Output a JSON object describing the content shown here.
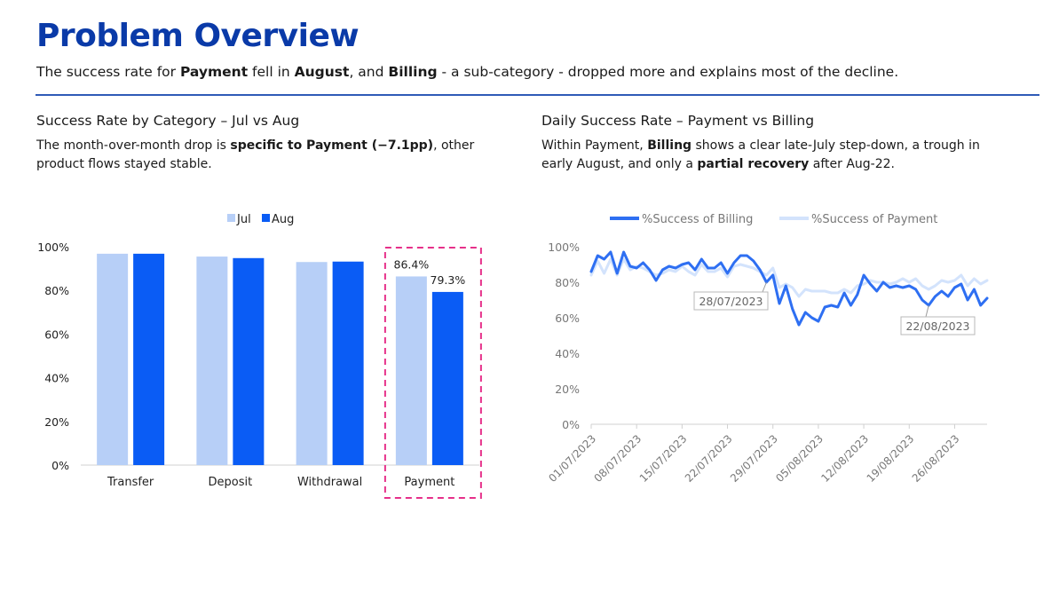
{
  "header": {
    "title": "Problem Overview",
    "subtitle": {
      "t1": "The success rate for ",
      "b1": "Payment",
      "t2": " fell in ",
      "b2": "August",
      "t3": ", and ",
      "b3": "Billing",
      "t4": " - a sub-category - dropped more and explains most of the decline."
    }
  },
  "left_panel": {
    "title": "Success Rate by Category – Jul vs Aug",
    "desc": {
      "t1": "The month-over-month drop is ",
      "b1": "specific to Payment (−7.1pp)",
      "t2": ", other product flows stayed stable."
    }
  },
  "right_panel": {
    "title": "Daily Success Rate – Payment vs Billing",
    "desc": {
      "t1": "Within Payment, ",
      "b1": "Billing",
      "t2": " shows a clear late-July step-down, a trough in early August, and only a ",
      "b2": "partial recovery",
      "t3": " after Aug-22."
    }
  },
  "chart_data": [
    {
      "type": "bar",
      "categories": [
        "Transfer",
        "Deposit",
        "Withdrawal",
        "Payment"
      ],
      "series": [
        {
          "name": "Jul",
          "color": "#b7cff7",
          "values": [
            96.8,
            95.5,
            93.0,
            86.4
          ]
        },
        {
          "name": "Aug",
          "color": "#0a5cf5",
          "values": [
            96.8,
            94.8,
            93.2,
            79.3
          ]
        }
      ],
      "data_labels": {
        "Payment": [
          "86.4%",
          "79.3%"
        ]
      },
      "highlight_category": "Payment",
      "highlight_color": "#e6308a",
      "ylim": [
        0,
        100
      ],
      "yticks": [
        "0%",
        "20%",
        "40%",
        "60%",
        "80%",
        "100%"
      ],
      "legend": "top-center",
      "grid": false
    },
    {
      "type": "line",
      "x": [
        "01/07/2023",
        "02/07/2023",
        "03/07/2023",
        "04/07/2023",
        "05/07/2023",
        "06/07/2023",
        "07/07/2023",
        "08/07/2023",
        "09/07/2023",
        "10/07/2023",
        "11/07/2023",
        "12/07/2023",
        "13/07/2023",
        "14/07/2023",
        "15/07/2023",
        "16/07/2023",
        "17/07/2023",
        "18/07/2023",
        "19/07/2023",
        "20/07/2023",
        "21/07/2023",
        "22/07/2023",
        "23/07/2023",
        "24/07/2023",
        "25/07/2023",
        "26/07/2023",
        "27/07/2023",
        "28/07/2023",
        "29/07/2023",
        "30/07/2023",
        "31/07/2023",
        "01/08/2023",
        "02/08/2023",
        "03/08/2023",
        "04/08/2023",
        "05/08/2023",
        "06/08/2023",
        "07/08/2023",
        "08/08/2023",
        "09/08/2023",
        "10/08/2023",
        "11/08/2023",
        "12/08/2023",
        "13/08/2023",
        "14/08/2023",
        "15/08/2023",
        "16/08/2023",
        "17/08/2023",
        "18/08/2023",
        "19/08/2023",
        "20/08/2023",
        "21/08/2023",
        "22/08/2023",
        "23/08/2023",
        "24/08/2023",
        "25/08/2023",
        "26/08/2023",
        "27/08/2023",
        "28/08/2023",
        "29/08/2023",
        "30/08/2023",
        "31/08/2023"
      ],
      "xticks": [
        "01/07/2023",
        "08/07/2023",
        "15/07/2023",
        "22/07/2023",
        "29/07/2023",
        "05/08/2023",
        "12/08/2023",
        "19/08/2023",
        "26/08/2023"
      ],
      "series": [
        {
          "name": "%Success of Billing",
          "color": "#2e6ff2",
          "values": [
            86,
            95,
            93,
            97,
            85,
            97,
            89,
            88,
            91,
            87,
            81,
            87,
            89,
            88,
            90,
            91,
            87,
            93,
            88,
            88,
            91,
            85,
            91,
            95,
            95,
            92,
            87,
            80,
            84,
            68,
            78,
            65,
            56,
            63,
            60,
            58,
            66,
            67,
            66,
            74,
            67,
            73,
            84,
            79,
            75,
            80,
            77,
            78,
            77,
            78,
            76,
            70,
            67,
            72,
            75,
            72,
            77,
            79,
            70,
            76,
            67,
            71
          ]
        },
        {
          "name": "%Success of Payment",
          "color": "#d3e3fc",
          "values": [
            84,
            92,
            85,
            93,
            84,
            93,
            87,
            89,
            88,
            86,
            84,
            85,
            87,
            86,
            89,
            86,
            84,
            90,
            86,
            86,
            88,
            83,
            89,
            90,
            89,
            88,
            86,
            84,
            88,
            77,
            79,
            77,
            72,
            76,
            75,
            75,
            75,
            74,
            74,
            76,
            74,
            78,
            79,
            81,
            80,
            80,
            79,
            80,
            82,
            80,
            82,
            78,
            76,
            78,
            81,
            80,
            81,
            84,
            78,
            82,
            79,
            81
          ]
        }
      ],
      "annotations": [
        {
          "label": "28/07/2023",
          "series": "%Success of Billing",
          "x": "28/07/2023"
        },
        {
          "label": "22/08/2023",
          "series": "%Success of Billing",
          "x": "22/08/2023"
        }
      ],
      "ylim": [
        0,
        100
      ],
      "yticks": [
        "0%",
        "20%",
        "40%",
        "60%",
        "80%",
        "100%"
      ],
      "legend": "top-center",
      "grid": false
    }
  ]
}
